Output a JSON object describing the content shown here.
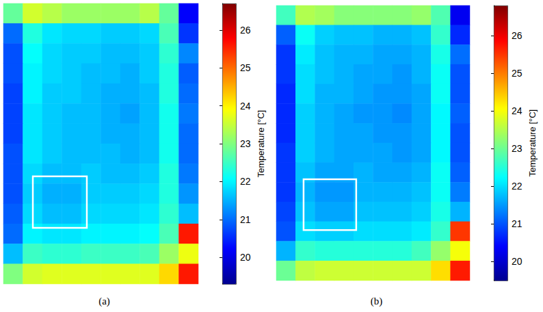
{
  "chart_data": [
    {
      "type": "heatmap",
      "title": "(a)",
      "tick_labels": false,
      "colorbar_label": "Temperature [°C]",
      "color_range": [
        19.3,
        26.7
      ],
      "color_ticks": [
        20,
        21,
        22,
        23,
        24,
        25,
        26
      ],
      "roi": {
        "cols": [
          1.51,
          4.28
        ],
        "rows": [
          8.63,
          11.2
        ]
      },
      "cells": [
        [
          22.8,
          23.6,
          23.4,
          23.2,
          23.2,
          23.2,
          23.2,
          23.4,
          22.8,
          20.2
        ],
        [
          21.0,
          22.3,
          21.9,
          21.8,
          21.8,
          21.7,
          21.7,
          21.8,
          22.6,
          20.6
        ],
        [
          20.8,
          22.1,
          21.8,
          21.7,
          21.7,
          21.6,
          21.6,
          21.7,
          22.4,
          21.2
        ],
        [
          20.8,
          22.0,
          21.8,
          21.7,
          21.6,
          21.6,
          21.5,
          21.7,
          22.3,
          20.9
        ],
        [
          20.7,
          22.0,
          21.7,
          21.7,
          21.6,
          21.5,
          21.5,
          21.6,
          22.3,
          21.0
        ],
        [
          20.7,
          21.9,
          21.7,
          21.6,
          21.6,
          21.5,
          21.4,
          21.6,
          22.2,
          21.1
        ],
        [
          20.7,
          21.9,
          21.7,
          21.6,
          21.6,
          21.5,
          21.5,
          21.6,
          22.2,
          21.0
        ],
        [
          20.8,
          21.9,
          21.7,
          21.6,
          21.6,
          21.6,
          21.5,
          21.6,
          22.2,
          21.0
        ],
        [
          20.8,
          21.8,
          21.6,
          21.6,
          21.7,
          21.6,
          21.6,
          21.7,
          22.3,
          21.1
        ],
        [
          20.8,
          21.7,
          21.5,
          21.5,
          21.7,
          21.7,
          21.7,
          21.8,
          22.3,
          21.3
        ],
        [
          20.9,
          21.8,
          21.6,
          21.6,
          21.8,
          21.8,
          21.8,
          21.9,
          22.4,
          21.6
        ],
        [
          21.0,
          22.0,
          21.9,
          21.9,
          22.0,
          22.0,
          22.0,
          22.1,
          22.6,
          25.6
        ],
        [
          21.6,
          22.5,
          22.4,
          22.4,
          22.5,
          22.5,
          22.5,
          22.6,
          23.2,
          23.8
        ],
        [
          23.0,
          23.6,
          23.7,
          23.7,
          23.7,
          23.7,
          23.7,
          23.7,
          24.2,
          25.6
        ]
      ]
    },
    {
      "type": "heatmap",
      "title": "(b)",
      "tick_labels": false,
      "colorbar_label": "Temperature [°C]",
      "color_range": [
        19.5,
        26.8
      ],
      "color_ticks": [
        20,
        21,
        22,
        23,
        24,
        25,
        26
      ],
      "roi": {
        "cols": [
          1.41,
          4.13
        ],
        "rows": [
          8.85,
          11.43
        ]
      },
      "cells": [
        [
          22.7,
          23.5,
          23.4,
          23.2,
          23.2,
          23.2,
          23.2,
          23.3,
          22.8,
          20.3
        ],
        [
          21.1,
          22.3,
          21.9,
          21.8,
          21.8,
          21.7,
          21.7,
          21.8,
          22.6,
          20.7
        ],
        [
          20.8,
          22.1,
          21.8,
          21.7,
          21.7,
          21.6,
          21.6,
          21.7,
          22.4,
          21.2
        ],
        [
          20.8,
          22.0,
          21.8,
          21.7,
          21.6,
          21.6,
          21.5,
          21.7,
          22.3,
          21.0
        ],
        [
          20.7,
          22.0,
          21.7,
          21.7,
          21.6,
          21.5,
          21.5,
          21.6,
          22.3,
          21.0
        ],
        [
          20.7,
          21.9,
          21.7,
          21.6,
          21.5,
          21.5,
          21.4,
          21.6,
          22.2,
          21.1
        ],
        [
          20.7,
          21.9,
          21.7,
          21.6,
          21.6,
          21.5,
          21.5,
          21.6,
          22.2,
          21.0
        ],
        [
          20.8,
          21.9,
          21.7,
          21.6,
          21.6,
          21.6,
          21.5,
          21.6,
          22.2,
          21.0
        ],
        [
          20.8,
          21.8,
          21.6,
          21.6,
          21.7,
          21.6,
          21.6,
          21.7,
          22.3,
          21.1
        ],
        [
          20.8,
          21.7,
          21.5,
          21.5,
          21.7,
          21.7,
          21.7,
          21.8,
          22.3,
          21.3
        ],
        [
          20.9,
          21.8,
          21.6,
          21.6,
          21.8,
          21.8,
          21.8,
          21.9,
          22.4,
          21.7
        ],
        [
          21.0,
          22.0,
          21.9,
          21.9,
          22.0,
          22.0,
          22.0,
          22.1,
          22.6,
          25.5
        ],
        [
          21.7,
          22.6,
          22.5,
          22.5,
          22.5,
          22.5,
          22.5,
          22.7,
          23.3,
          24.0
        ],
        [
          23.0,
          23.6,
          23.7,
          23.7,
          23.7,
          23.7,
          23.7,
          23.7,
          24.3,
          25.7
        ]
      ]
    }
  ]
}
